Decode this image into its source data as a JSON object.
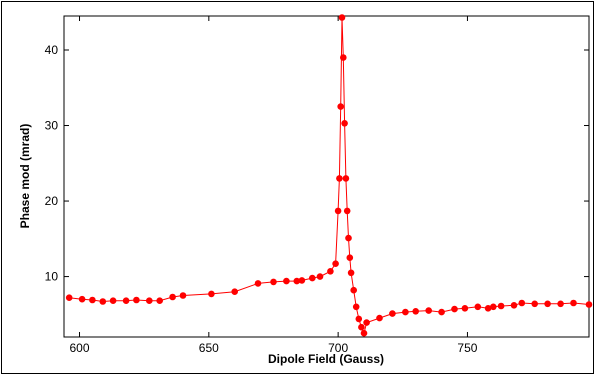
{
  "chart_data": {
    "type": "line",
    "xlabel": "Dipole Field (Gauss)",
    "ylabel": "Phase mod (mrad)",
    "xlim": [
      594,
      797
    ],
    "ylim": [
      2,
      44.5
    ],
    "x_ticks": [
      600,
      650,
      700,
      750
    ],
    "y_ticks": [
      10,
      20,
      30,
      40
    ],
    "grid": false,
    "series": [
      {
        "color": "#ff0000",
        "x": [
          596,
          601,
          605,
          609,
          613,
          618,
          622,
          627,
          631,
          636,
          640,
          651,
          660,
          669,
          675,
          680,
          684,
          686,
          690,
          693,
          697,
          699,
          700,
          700.5,
          701,
          701.5,
          702,
          702.5,
          703,
          703.5,
          704,
          704.5,
          705,
          706,
          707,
          708,
          709,
          710,
          711,
          716,
          721,
          726,
          730,
          735,
          740,
          745,
          749,
          754,
          758,
          760,
          763,
          768,
          771,
          776,
          781,
          786,
          791,
          797
        ],
        "y": [
          7.2,
          7.0,
          6.9,
          6.7,
          6.8,
          6.8,
          6.9,
          6.8,
          6.8,
          7.3,
          7.5,
          7.7,
          8.0,
          9.1,
          9.3,
          9.4,
          9.4,
          9.5,
          9.8,
          10.0,
          10.7,
          11.7,
          18.7,
          23.0,
          32.5,
          44.3,
          39.0,
          30.3,
          23.0,
          18.7,
          15.1,
          12.5,
          10.5,
          8.2,
          6.0,
          4.4,
          3.3,
          2.5,
          3.9,
          4.5,
          5.1,
          5.3,
          5.4,
          5.5,
          5.3,
          5.7,
          5.8,
          6.0,
          5.8,
          6.0,
          6.1,
          6.2,
          6.5,
          6.4,
          6.4,
          6.4,
          6.5,
          6.3
        ]
      }
    ]
  }
}
